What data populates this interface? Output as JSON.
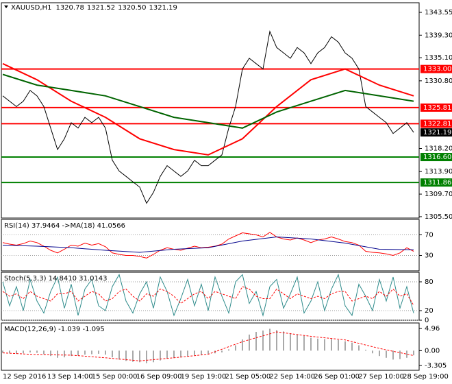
{
  "chart_data": [
    {
      "type": "line",
      "title": "XAUUSD,H1",
      "ohlc": [
        "1320.78",
        "1321.52",
        "1320.50",
        "1321.19"
      ],
      "ylim": [
        1305.24,
        1345.34
      ],
      "yticks": [
        1343.55,
        {
          "value": 1339.3,
          "label": "1339.30"
        },
        {
          "value": 1335.1,
          "label": "1335.10"
        },
        {
          "value": 1330.8,
          "label": "1330.80"
        },
        {
          "value": 1318.2,
          "label": "1318.20"
        },
        {
          "value": 1313.9,
          "label": "1313.90"
        },
        {
          "value": 1309.7,
          "label": "1309.70"
        },
        {
          "value": 1305.5,
          "label": "1305.50"
        }
      ],
      "series": [
        {
          "name": "XAUUSD",
          "color": "#000000",
          "width": 1,
          "values": [
            1328,
            1327,
            1326,
            1327,
            1329,
            1328,
            1326,
            1322,
            1318,
            1320,
            1323,
            1322,
            1324,
            1323,
            1324,
            1322,
            1316,
            1314,
            1313,
            1312,
            1311,
            1308,
            1310,
            1313,
            1315,
            1314,
            1313,
            1314,
            1316,
            1315,
            1315,
            1316,
            1317,
            1322,
            1326,
            1333,
            1335,
            1334,
            1333,
            1340,
            1337,
            1336,
            1335,
            1337,
            1336,
            1334,
            1336,
            1337,
            1339,
            1338,
            1336,
            1335,
            1333,
            1326,
            1325,
            1324,
            1323,
            1321,
            1322,
            1323,
            1321.19
          ]
        },
        {
          "name": "MA red",
          "color": "#ff0000",
          "width": 2,
          "values": [
            1334,
            1331,
            1327,
            1324,
            1320,
            1318,
            1317,
            1320,
            1326,
            1331,
            1333,
            1330,
            1328
          ]
        },
        {
          "name": "MA green",
          "color": "#006400",
          "width": 2,
          "values": [
            1332,
            1330,
            1329,
            1328,
            1326,
            1324,
            1323,
            1322,
            1325,
            1327,
            1329,
            1328,
            1327
          ]
        }
      ],
      "levels": {
        "values": [
          1333,
          1325.81,
          1322.81,
          1316.6,
          1311.86
        ],
        "value_labels": [
          "1333.00",
          "1325.81",
          "1322.81",
          "1316.60",
          "1311.86"
        ],
        "colors": [
          "#ff0000",
          "#ff0000",
          "#ff0000",
          "#008000",
          "#008000"
        ]
      },
      "last_price": 1321.19,
      "xticks": [
        "12 Sep 2016",
        "13 Sep 14:00",
        "15 Sep 00:00",
        "16 Sep 09:00",
        "19 Sep 19:00",
        "21 Sep 05:00",
        "22 Sep 14:00",
        "26 Sep 01:00",
        "27 Sep 10:00",
        "28 Sep 19:00"
      ]
    },
    {
      "type": "line",
      "title": "RSI(14) 37.9464 ->MA(18) 41.0566",
      "ylim": [
        0,
        100
      ],
      "yticks": [
        70,
        30
      ],
      "grid": true,
      "series": [
        {
          "name": "RSI",
          "color": "#ff0000",
          "width": 1,
          "values": [
            55,
            52,
            50,
            53,
            58,
            55,
            48,
            40,
            35,
            42,
            50,
            48,
            54,
            50,
            53,
            47,
            35,
            32,
            30,
            30,
            28,
            25,
            32,
            40,
            45,
            42,
            40,
            44,
            48,
            45,
            46,
            48,
            52,
            62,
            68,
            74,
            72,
            70,
            66,
            75,
            66,
            62,
            60,
            64,
            60,
            55,
            60,
            62,
            66,
            62,
            57,
            55,
            50,
            38,
            36,
            35,
            33,
            30,
            35,
            45,
            37.9464
          ]
        },
        {
          "name": "MA",
          "color": "#00008b",
          "width": 1,
          "values": [
            50,
            48,
            45,
            40,
            36,
            42,
            45,
            58,
            66,
            62,
            54,
            42,
            41.0566
          ]
        }
      ]
    },
    {
      "type": "line",
      "title": "Stoch(5,3,3) 14.8410 31.0143",
      "ylim": [
        0,
        100
      ],
      "yticks": [
        80,
        20,
        0
      ],
      "grid": true,
      "series": [
        {
          "name": "Main",
          "color": "#2e8b8b",
          "width": 1,
          "values": [
            80,
            30,
            70,
            20,
            85,
            40,
            15,
            60,
            90,
            25,
            75,
            10,
            65,
            85,
            30,
            20,
            70,
            95,
            40,
            15,
            55,
            80,
            25,
            90,
            60,
            10,
            45,
            85,
            30,
            75,
            20,
            90,
            50,
            15,
            80,
            95,
            35,
            60,
            10,
            70,
            85,
            25,
            55,
            90,
            15,
            40,
            80,
            20,
            65,
            95,
            30,
            10,
            75,
            50,
            20,
            85,
            40,
            90,
            25,
            70,
            14.841
          ]
        },
        {
          "name": "Signal",
          "color": "#ff0000",
          "width": 1,
          "dash": true,
          "values": [
            60,
            50,
            55,
            45,
            60,
            50,
            45,
            40,
            55,
            55,
            60,
            40,
            50,
            60,
            55,
            40,
            45,
            60,
            65,
            50,
            40,
            55,
            50,
            65,
            60,
            50,
            35,
            45,
            55,
            60,
            45,
            60,
            55,
            50,
            45,
            70,
            65,
            50,
            45,
            45,
            65,
            55,
            45,
            55,
            50,
            45,
            50,
            45,
            55,
            60,
            60,
            40,
            45,
            50,
            45,
            60,
            50,
            65,
            50,
            55,
            31.0143
          ]
        }
      ]
    },
    {
      "type": "line",
      "title": "MACD(12,26,9) -1.039 -1.095",
      "ylim": [
        -4.4,
        6.2
      ],
      "yticks": [
        4.96,
        {
          "value": 0,
          "label": "0.00"
        },
        -3.305
      ],
      "series": [
        {
          "name": "MACD",
          "color": "#a9a9a9",
          "kind": "bar",
          "values": [
            -0.5,
            -0.6,
            -0.7,
            -0.6,
            -0.4,
            -0.5,
            -0.8,
            -1.2,
            -1.6,
            -1.5,
            -1.2,
            -1.1,
            -0.9,
            -0.8,
            -0.7,
            -0.9,
            -1.5,
            -2.0,
            -2.3,
            -2.5,
            -2.6,
            -2.8,
            -2.6,
            -2.2,
            -1.8,
            -1.6,
            -1.5,
            -1.3,
            -1.0,
            -0.9,
            -0.8,
            -0.6,
            -0.4,
            0.3,
            1.2,
            2.5,
            3.6,
            4.2,
            4.5,
            4.9,
            4.6,
            4.3,
            3.9,
            3.6,
            3.3,
            2.9,
            2.7,
            2.6,
            2.6,
            2.4,
            2.1,
            1.8,
            1.2,
            0.2,
            -0.6,
            -1.2,
            -1.6,
            -2.0,
            -1.9,
            -1.6,
            -1.039
          ]
        },
        {
          "name": "Signal",
          "color": "#ff0000",
          "width": 1,
          "dash": true,
          "values": [
            -0.5,
            -0.9,
            -1.0,
            -1.6,
            -2.3,
            -1.6,
            -0.8,
            2.0,
            4.2,
            3.2,
            2.4,
            0.5,
            -1.095
          ]
        }
      ]
    }
  ]
}
